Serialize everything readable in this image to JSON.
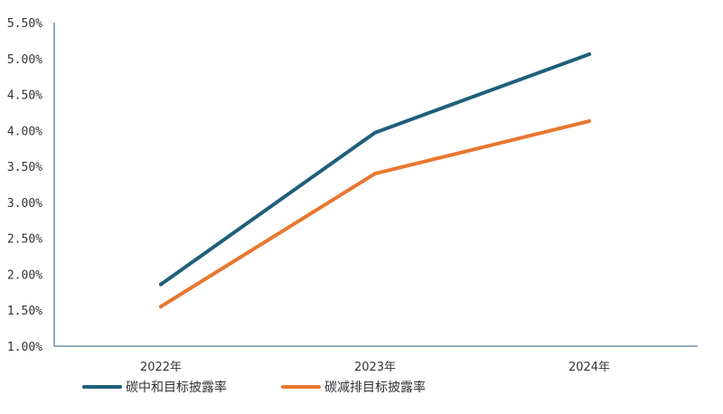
{
  "chart_data": {
    "type": "line",
    "categories": [
      "2022年",
      "2023年",
      "2024年"
    ],
    "ylim": [
      0.01,
      0.055
    ],
    "yticks": [
      "1.00%",
      "1.50%",
      "2.00%",
      "2.50%",
      "3.00%",
      "3.50%",
      "4.00%",
      "4.50%",
      "5.00%",
      "5.50%"
    ],
    "grid": false,
    "legend_position": "bottom-left",
    "series": [
      {
        "name": "碳中和目标披露率",
        "values": [
          0.0186,
          0.0397,
          0.0506
        ],
        "color": "#1f5f7a"
      },
      {
        "name": "碳减排目标披露率",
        "values": [
          0.0155,
          0.034,
          0.0413
        ],
        "color": "#e8762f"
      }
    ]
  }
}
